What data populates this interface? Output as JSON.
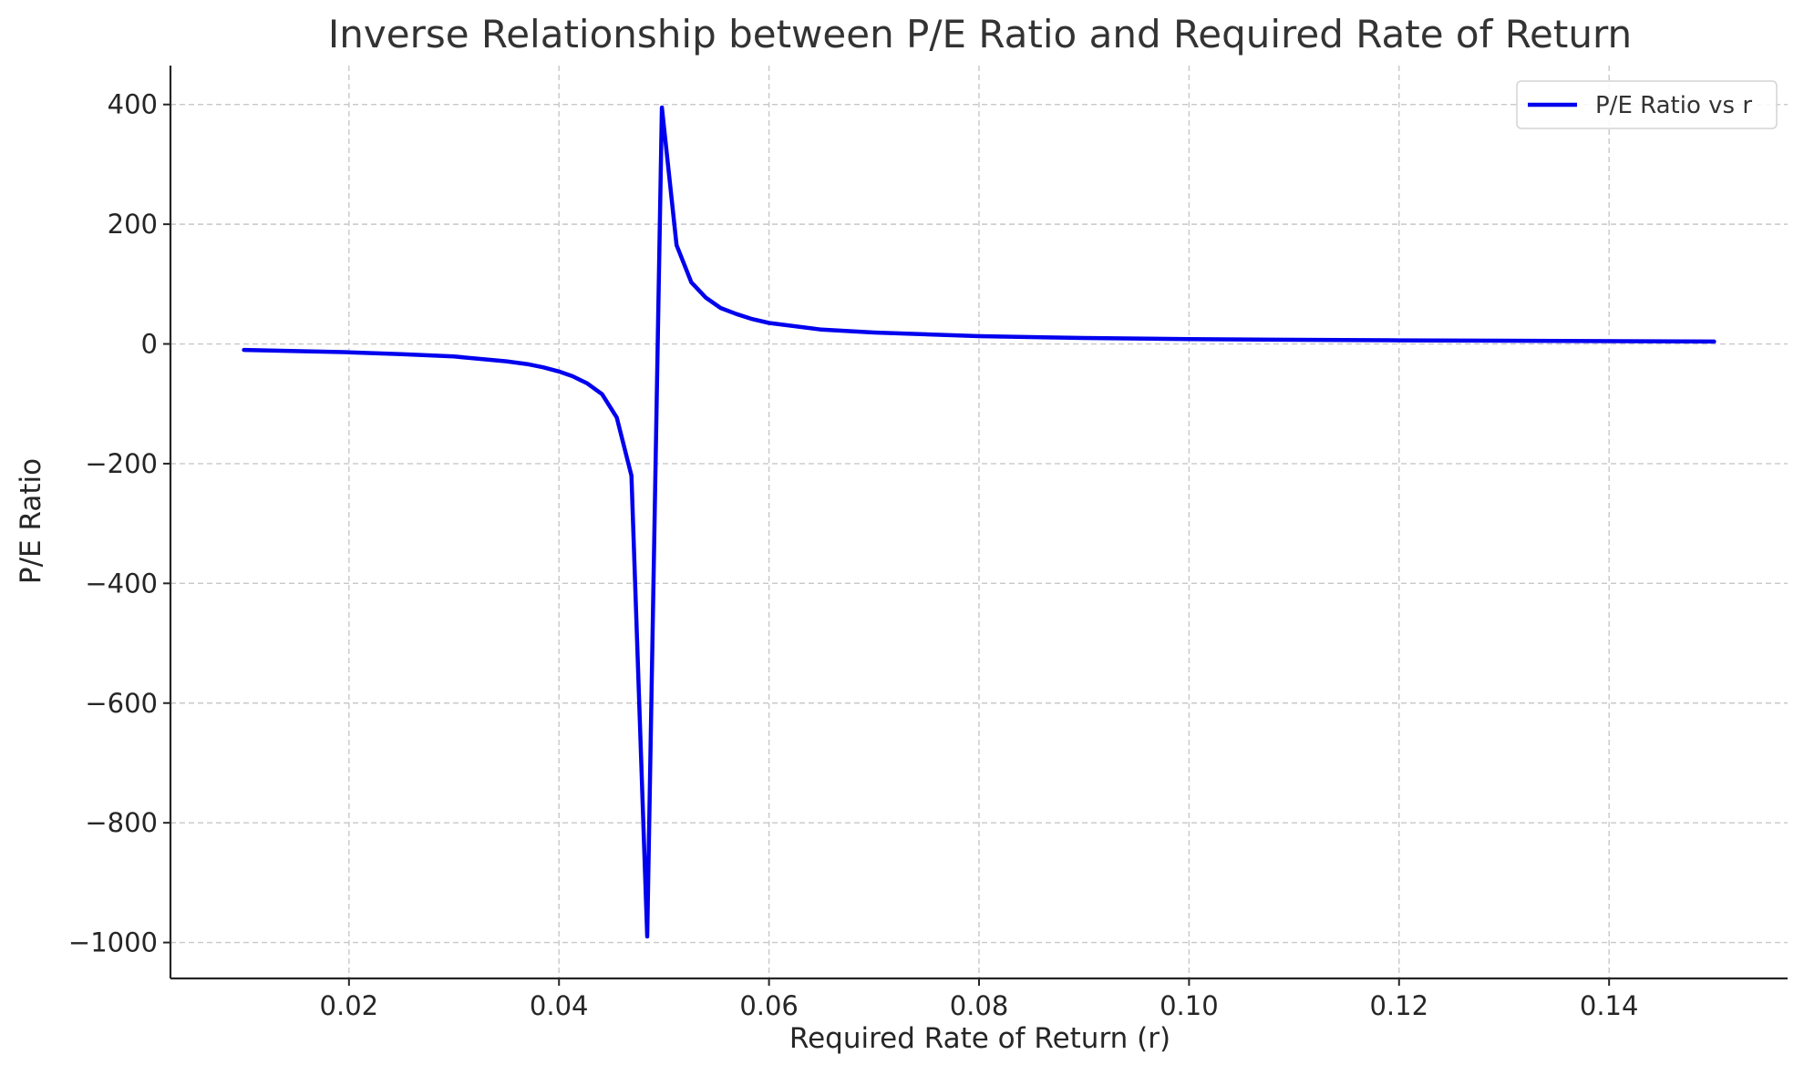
{
  "chart_data": {
    "type": "line",
    "title": "Inverse Relationship between P/E Ratio and Required Rate of Return",
    "xlabel": "Required Rate of Return (r)",
    "ylabel": "P/E Ratio",
    "xlim": [
      0.003,
      0.157
    ],
    "ylim": [
      -1060,
      465
    ],
    "xticks": [
      0.02,
      0.04,
      0.06,
      0.08,
      0.1,
      0.12,
      0.14
    ],
    "xtick_labels": [
      "0.02",
      "0.04",
      "0.06",
      "0.08",
      "0.10",
      "0.12",
      "0.14"
    ],
    "yticks": [
      400,
      200,
      0,
      -200,
      -400,
      -600,
      -800,
      -1000
    ],
    "ytick_labels": [
      "400",
      "200",
      "0",
      "−200",
      "−400",
      "−600",
      "−800",
      "−1000"
    ],
    "grid": true,
    "legend_position": "top-right",
    "series": [
      {
        "name": "P/E Ratio vs r",
        "color": "#0000ee",
        "x": [
          0.01,
          0.02,
          0.025,
          0.03,
          0.035,
          0.0371,
          0.0385,
          0.04,
          0.0413,
          0.0427,
          0.0441,
          0.0455,
          0.0469,
          0.0484,
          0.0498,
          0.0512,
          0.0526,
          0.054,
          0.0554,
          0.0569,
          0.0583,
          0.06,
          0.065,
          0.07,
          0.08,
          0.09,
          0.1,
          0.12,
          0.15
        ],
        "y": [
          -10,
          -14,
          -17,
          -21,
          -29,
          -34,
          -39,
          -46,
          -54,
          -66,
          -84,
          -123,
          -220,
          -990,
          395,
          165,
          103,
          77,
          60,
          50,
          42,
          35,
          24,
          19,
          13,
          10,
          8,
          6,
          4
        ]
      }
    ]
  }
}
